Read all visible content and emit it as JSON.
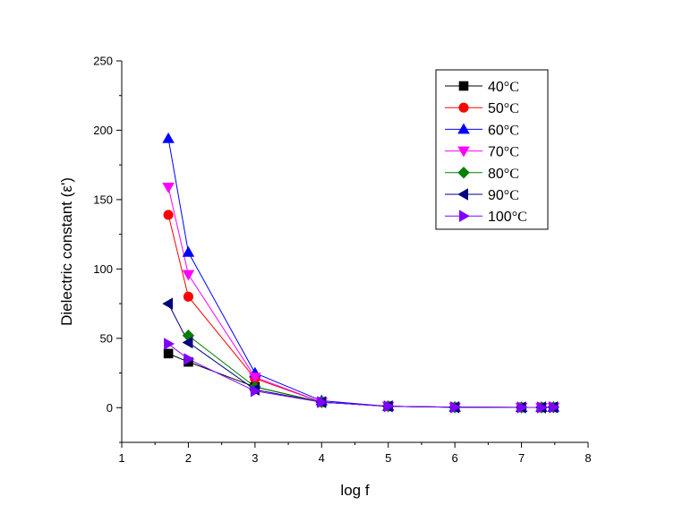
{
  "chart_data": {
    "type": "line",
    "xlabel": "log f",
    "ylabel": "Dielectric constant (ε')",
    "xlim": [
      1,
      8
    ],
    "ylim": [
      -25,
      250
    ],
    "xticks": [
      1,
      2,
      3,
      4,
      5,
      6,
      7,
      8
    ],
    "yticks": [
      0,
      50,
      100,
      150,
      200,
      250
    ],
    "grid": false,
    "legend_position": "top-right",
    "x": [
      1.7,
      2,
      3,
      4,
      5,
      6,
      7,
      7.3,
      7.48
    ],
    "series": [
      {
        "name": "40",
        "unit": "°C",
        "color": "#000000",
        "marker": "square",
        "values": [
          39,
          33,
          15,
          4,
          1,
          0.3,
          0.2,
          0.2,
          0.3
        ]
      },
      {
        "name": "50",
        "unit": "°C",
        "color": "#ff0000",
        "marker": "circle",
        "values": [
          139,
          80,
          21,
          4,
          1,
          0.3,
          0.2,
          0.2,
          0.3
        ]
      },
      {
        "name": "60",
        "unit": "°C",
        "color": "#0000ff",
        "marker": "triangle-up",
        "values": [
          194,
          112,
          25,
          5,
          1,
          0.3,
          0.2,
          0.2,
          0.3
        ]
      },
      {
        "name": "70",
        "unit": "°C",
        "color": "#ff00ff",
        "marker": "triangle-down",
        "values": [
          159,
          96,
          22,
          4,
          1,
          0.3,
          0.2,
          0.2,
          0.3
        ]
      },
      {
        "name": "80",
        "unit": "°C",
        "color": "#008000",
        "marker": "diamond",
        "values": [
          null,
          52,
          15,
          4,
          1,
          0.3,
          0.2,
          0.2,
          0.3
        ]
      },
      {
        "name": "90",
        "unit": "°C",
        "color": "#000080",
        "marker": "triangle-left",
        "values": [
          75,
          47,
          13,
          4,
          1,
          0.3,
          0.2,
          0.2,
          0.3
        ]
      },
      {
        "name": "100",
        "unit": "°C",
        "color": "#8000ff",
        "marker": "triangle-right",
        "values": [
          46,
          35,
          12,
          4,
          1,
          0.3,
          0.2,
          0.2,
          0.3
        ]
      }
    ]
  }
}
